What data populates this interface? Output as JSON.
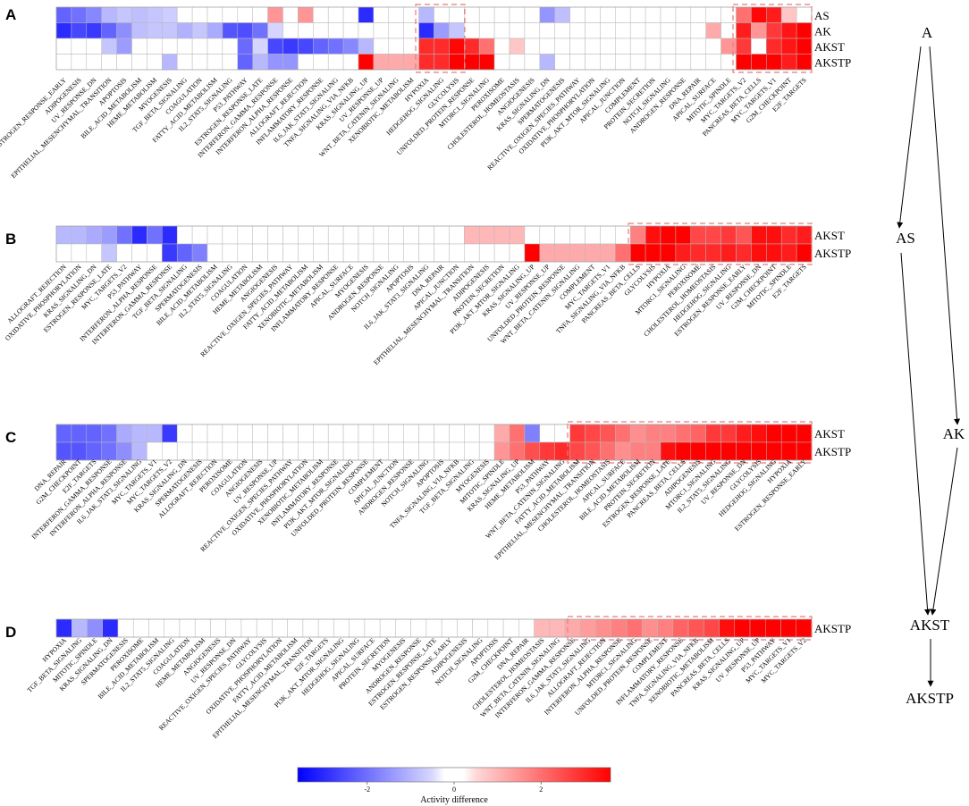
{
  "chart_data": [
    {
      "type": "heatmap",
      "panel": "A",
      "rows": [
        "AS",
        "AK",
        "AKST",
        "AKSTP"
      ],
      "columns": [
        "ESTROGEN_RESPONSE_EARLY",
        "ADIPOGENESIS",
        "UV_RESPONSE_DN",
        "EPITHELIAL_MESENCHYMAL_TRANSITION",
        "APOPTOSIS",
        "BILE_ACID_METABOLISM",
        "HEME_METABOLISM",
        "MYOGENESIS",
        "TGF_BETA_SIGNALING",
        "COAGULATION",
        "FATTY_ACID_METABOLISM",
        "IL2_STAT5_SIGNALING",
        "P53_PATHWAY",
        "ESTROGEN_RESPONSE_LATE",
        "INTERFERON_GAMMA_RESPONSE",
        "INTERFERON_ALPHA_RESPONSE",
        "ALLOGRAFT_REJECTION",
        "INFLAMMATORY_RESPONSE",
        "IL6_JAK_STAT3_SIGNALING",
        "TNFA_SIGNALING_VIA_NFKB",
        "KRAS_SIGNALING_UP",
        "UV_RESPONSE_UP",
        "WNT_BETA_CATENIN_SIGNALING",
        "XENOBIOTIC_METABOLISM",
        "HYPOXIA",
        "HEDGEHOG_SIGNALING",
        "GLYCOLYSIS",
        "UNFOLDED_PROTEIN_RESPONSE",
        "MTORC1_SIGNALING",
        "PEROXISOME",
        "CHOLESTEROL_HOMEOSTASIS",
        "ANGIOGENESIS",
        "KRAS_SIGNALING_DN",
        "SPERMATOGENESIS",
        "REACTIVE_OXIGEN_SPECIES_PATHWAY",
        "OXIDATIVE_PHOSPHORYLATION",
        "PI3K_AKT_MTOR_SIGNALING",
        "APICAL_JUNCTION",
        "COMPLEMENT",
        "PROTEIN_SECRETION",
        "NOTCH_SIGNALING",
        "ANDROGEN_RESPONSE",
        "DNA_REPAIR",
        "APICAL_SURFACE",
        "MITOTIC_SPINDLE",
        "MYC_TARGETS_V2",
        "PANCREAS_BETA_CELLS",
        "MYC_TARGETS_V1",
        "G2M_CHECKPOINT",
        "E2F_TARGETS"
      ],
      "values": [
        [
          -2.2,
          -2.0,
          -1.7,
          -1.0,
          -0.8,
          -0.9,
          -0.8,
          -0.7,
          0,
          0,
          0,
          0,
          0,
          0,
          1.5,
          0,
          1.5,
          0,
          0,
          0,
          -3.0,
          0,
          0,
          0,
          -1.0,
          0,
          0,
          0,
          0,
          0,
          0,
          0,
          -1.5,
          -0.9,
          0,
          0,
          0,
          0,
          0,
          0,
          0,
          0,
          0,
          0,
          0,
          2.0,
          3.5,
          3.2,
          0.8,
          0
        ],
        [
          -3.0,
          -2.6,
          -2.8,
          -2.2,
          -1.6,
          -0.9,
          -0.8,
          -0.8,
          -1.1,
          -0.8,
          -1.2,
          -2.4,
          -2.5,
          -2.0,
          -0.6,
          0,
          0,
          0,
          0,
          0,
          0,
          0,
          0,
          0,
          -3.0,
          -1.4,
          -0.8,
          0,
          0,
          0,
          0,
          0,
          0,
          0,
          0,
          0,
          0,
          0,
          0,
          0,
          0,
          0,
          0,
          1.2,
          0,
          3.2,
          1.5,
          2.8,
          3.3,
          3.6
        ],
        [
          0,
          0,
          0,
          -0.8,
          -1.4,
          0,
          0,
          0,
          0,
          0,
          0,
          0,
          -2.1,
          -0.6,
          -2.6,
          -2.8,
          -2.6,
          -2.2,
          -2.0,
          -1.7,
          -1.0,
          0,
          0,
          0,
          3.0,
          3.0,
          3.5,
          3.0,
          2.0,
          0,
          0.8,
          0,
          0,
          0,
          0,
          0,
          0,
          0,
          0,
          0,
          0,
          0,
          0,
          0,
          1.5,
          2.8,
          0,
          3.0,
          3.3,
          3.6
        ],
        [
          0,
          0,
          0,
          0,
          0,
          0,
          0,
          -1.0,
          0,
          0,
          0,
          0,
          -2.2,
          -1.0,
          -1.5,
          -1.5,
          0,
          0,
          0,
          0,
          3.6,
          1.2,
          1.2,
          1.2,
          3.0,
          3.0,
          3.6,
          3.6,
          3.6,
          0,
          0,
          0,
          -1.0,
          0,
          0,
          0,
          0,
          0,
          0,
          0,
          0,
          0,
          0,
          0,
          0,
          3.6,
          3.6,
          3.6,
          3.2,
          3.6
        ]
      ]
    },
    {
      "type": "heatmap",
      "panel": "B",
      "rows": [
        "AKST",
        "AKSTP"
      ],
      "columns": [
        "ALLOGRAFT_REJECTION",
        "OXIDATIVE_PHOSPHORYLATION",
        "KRAS_SIGNALING_DN",
        "ESTROGEN_RESPONSE_LATE",
        "MYC_TARGETS_V2",
        "P53_PATHWAY",
        "INTERFERON_ALPHA_RESPONSE",
        "INTERFERON_GAMMA_RESPONSE",
        "TGF_BETA_SIGNALING",
        "SPERMATOGENESIS",
        "BILE_ACID_METABOLISM",
        "IL2_STAT5_SIGNALING",
        "COAGULATION",
        "HEME_METABOLISM",
        "ANGIOGENESIS",
        "REACTIVE_OXIGEN_SPECIES_PATHWAY",
        "FATTY_ACID_METABOLISM",
        "XENOBIOTIC_METABOLISM",
        "INFLAMMATORY_RESPONSE",
        "APICAL_SURFACE",
        "MYOGENESIS",
        "ANDROGEN_RESPONSE",
        "NOTCH_SIGNALING",
        "APOPTOSIS",
        "IL6_JAK_STAT3_SIGNALING",
        "DNA_REPAIR",
        "APICAL_JUNCTION",
        "EPITHELIAL_MESENCHYMAL_TRANSITION",
        "ADIPOGENESIS",
        "PROTEIN_SECRETION",
        "PI3K_AKT_MTOR_SIGNALING",
        "KRAS_SIGNALING_UP",
        "UV_RESPONSE_UP",
        "UNFOLDED_PROTEIN_RESPONSE",
        "WNT_BETA_CATENIN_SIGNALING",
        "COMPLEMENT",
        "MYC_TARGETS_V1",
        "TNFA_SIGNALING_VIA_NFKB",
        "PANCREAS_BETA_CELLS",
        "GLYCOLYSIS",
        "HYPOXIA",
        "MTORC1_SIGNALING",
        "PEROXISOME",
        "CHOLESTEROL_HOMEOSTASIS",
        "HEDGEHOG_SIGNALING",
        "ESTROGEN_RESPONSE_EARLY",
        "UV_RESPONSE_DN",
        "G2M_CHECKPOINT",
        "MITOTIC_SPINDLE",
        "E2F_TARGETS"
      ],
      "values": [
        [
          -1.0,
          -1.0,
          -1.2,
          -1.4,
          -2.0,
          -3.0,
          -2.0,
          -3.0,
          0,
          0,
          0,
          0,
          0,
          0,
          0,
          0,
          0,
          0,
          0,
          0,
          0,
          0,
          0,
          0,
          0,
          0,
          0,
          1.0,
          1.0,
          1.0,
          1.0,
          0,
          0,
          0,
          0,
          0,
          0,
          0,
          1.8,
          3.4,
          3.6,
          3.6,
          2.6,
          2.6,
          2.8,
          2.4,
          3.4,
          3.4,
          3.0,
          3.2
        ],
        [
          0,
          0,
          0,
          -0.8,
          0,
          0,
          0,
          -2.8,
          -2.2,
          -1.8,
          0,
          0,
          0,
          0,
          0,
          0,
          0,
          0,
          0,
          0,
          0,
          0,
          0,
          0,
          0,
          0,
          0,
          0,
          0,
          0,
          0,
          3.6,
          1.2,
          1.2,
          1.2,
          1.2,
          1.2,
          2.0,
          3.6,
          3.6,
          3.6,
          3.2,
          3.0,
          3.0,
          3.2,
          3.0,
          3.4,
          3.4,
          3.2,
          3.6
        ]
      ]
    },
    {
      "type": "heatmap",
      "panel": "C",
      "rows": [
        "AKST",
        "AKSTP"
      ],
      "columns": [
        "DNA_REPAIR",
        "G2M_CHECKPOINT",
        "E2F_TARGETS",
        "INTERFERON_GAMMA_RESPONSE",
        "INTERFERON_ALPHA_RESPONSE",
        "IL6_JAK_STAT3_SIGNALING",
        "MYC_TARGETS_V1",
        "MYC_TARGETS_V2",
        "KRAS_SIGNALING_DN",
        "SPERMATOGENESIS",
        "ALLOGRAFT_REJECTION",
        "PEROXISOME",
        "COAGULATION",
        "ANGIOGENESIS",
        "UV_RESPONSE_UP",
        "REACTIVE_OXIGEN_SPECIES_PATHWAY",
        "OXIDATIVE_PHOSPHORYLATION",
        "XENOBIOTIC_METABOLISM",
        "INFLAMMATORY_RESPONSE",
        "PI3K_AKT_MTOR_SIGNALING",
        "UNFOLDED_PROTEIN_RESPONSE",
        "COMPLEMENT",
        "APICAL_JUNCTION",
        "ANDROGEN_RESPONSE",
        "NOTCH_SIGNALING",
        "APOPTOSIS",
        "TNFA_SIGNALING_VIA_NFKB",
        "TGF_BETA_SIGNALING",
        "MYOGENESIS",
        "MITOTIC_SPINDLE",
        "KRAS_SIGNALING_UP",
        "HEME_METABOLISM",
        "P53_PATHWAY",
        "WNT_BETA_CATENIN_SIGNALING",
        "FATTY_ACID_METABOLISM",
        "EPITHELIAL_MESENCHYMAL_TRANSITION",
        "CHOLESTEROL_HOMEOSTASIS",
        "APICAL_SURFACE",
        "BILE_ACID_METABOLISM",
        "PROTEIN_SECRETION",
        "ESTROGEN_RESPONSE_LATE",
        "PANCREAS_BETA_CELLS",
        "ADIPOGENESIS",
        "MTORC1_SIGNALING",
        "IL2_STAT5_SIGNALING",
        "UV_RESPONSE_DN",
        "GLYCOLYSIS",
        "HEDGEHOG_SIGNALING",
        "HYPOXIA",
        "ESTROGEN_RESPONSE_EARLY"
      ],
      "values": [
        [
          -2.2,
          -2.2,
          -2.2,
          -2.0,
          -1.2,
          -1.0,
          -1.0,
          -2.8,
          0,
          0,
          0,
          0,
          0,
          0,
          0,
          0,
          0,
          0,
          0,
          0,
          0,
          0,
          0,
          0,
          0,
          0,
          0,
          0,
          0,
          1.2,
          2.0,
          -1.8,
          0,
          0,
          2.8,
          2.6,
          2.4,
          2.0,
          1.6,
          1.8,
          1.8,
          2.0,
          2.2,
          2.8,
          2.8,
          3.2,
          3.4,
          3.6,
          3.6,
          3.6
        ],
        [
          -2.4,
          -2.4,
          -2.2,
          -2.0,
          -1.6,
          -1.0,
          0,
          0,
          0,
          0,
          0,
          0,
          0,
          0,
          0,
          0,
          0,
          0,
          0,
          0,
          0,
          0,
          0,
          0,
          0,
          0,
          0,
          0,
          0,
          1.5,
          2.0,
          2.5,
          2.8,
          3.0,
          2.6,
          2.4,
          2.0,
          1.6,
          1.8,
          1.8,
          3.4,
          3.6,
          3.6,
          3.6,
          3.6,
          3.6,
          3.6,
          3.6,
          3.6,
          3.6
        ]
      ]
    },
    {
      "type": "heatmap",
      "panel": "D",
      "rows": [
        "AKSTP"
      ],
      "columns": [
        "HYPOXIA",
        "TGF_BETA_SIGNALING",
        "MITOTIC_SPINDLE",
        "KRAS_SIGNALING_DN",
        "SPERMATOGENESIS",
        "PEROXISOME",
        "BILE_ACID_METABOLISM",
        "IL2_STAT5_SIGNALING",
        "COAGULATION",
        "HEME_METABOLISM",
        "ANGIOGENESIS",
        "UV_RESPONSE_DN",
        "REACTIVE_OXIGEN_SPECIES_PATHWAY",
        "GLYCOLYSIS",
        "OXIDATIVE_PHOSPHORYLATION",
        "FATTY_ACID_METABOLISM",
        "EPITHELIAL_MESENCHYMAL_TRANSITION",
        "E2F_TARGETS",
        "PI3K_AKT_MTOR_SIGNALING",
        "HEDGEHOG_SIGNALING",
        "APICAL_SURFACE",
        "PROTEIN_SECRETION",
        "MYOGENESIS",
        "ANDROGEN_RESPONSE",
        "ESTROGEN_RESPONSE_LATE",
        "ESTROGEN_RESPONSE_EARLY",
        "ADIPOGENESIS",
        "NOTCH_SIGNALING",
        "APOPTOSIS",
        "G2M_CHECKPOINT",
        "DNA_REPAIR",
        "CHOLESTEROL_HOMEOSTASIS",
        "WNT_BETA_CATENIN_SIGNALING",
        "INTERFERON_GAMMA_RESPONSE",
        "IL6_JAK_STAT3_SIGNALING",
        "ALLOGRAFT_REJECTION",
        "INTERFERON_ALPHA_RESPONSE",
        "MTORC1_SIGNALING",
        "UNFOLDED_PROTEIN_RESPONSE",
        "COMPLEMENT",
        "INFLAMMATORY_RESPONSE",
        "TNFA_SIGNALING_VIA_NFKB",
        "XENOBIOTIC_METABOLISM",
        "PANCREAS_BETA_CELLS",
        "KRAS_SIGNALING_UP",
        "UV_RESPONSE_UP",
        "P53_PATHWAY",
        "MYC_TARGETS_V1",
        "MYC_TARGETS_V2"
      ],
      "values": [
        [
          -3.0,
          -1.0,
          -1.6,
          -3.0,
          0,
          0,
          0,
          0,
          0,
          0,
          0,
          0,
          0,
          0,
          0,
          0,
          0,
          0,
          0,
          0,
          0,
          0,
          0,
          0,
          0,
          0,
          0,
          0,
          0,
          0,
          0,
          1.0,
          1.0,
          1.2,
          1.4,
          1.6,
          1.8,
          2.0,
          1.6,
          1.8,
          2.2,
          2.4,
          2.6,
          3.4,
          3.6,
          3.6,
          3.6,
          3.6,
          3.6
        ]
      ]
    },
    {
      "type": "colorbar",
      "label": "Activity difference",
      "ticks": [
        "-2",
        "0",
        "2"
      ],
      "range": [
        -3.6,
        3.6
      ],
      "colors": {
        "low": "#0000ff",
        "mid": "#ffffff",
        "high": "#ff0000"
      }
    },
    {
      "type": "diagram",
      "nodes": [
        "A",
        "AS",
        "AK",
        "AKST",
        "AKSTP"
      ],
      "edges": [
        [
          "A",
          "AS"
        ],
        [
          "A",
          "AK"
        ],
        [
          "AS",
          "AKST"
        ],
        [
          "AK",
          "AKST"
        ],
        [
          "AKST",
          "AKSTP"
        ]
      ]
    }
  ],
  "panel_labels": [
    "A",
    "B",
    "C",
    "D"
  ]
}
